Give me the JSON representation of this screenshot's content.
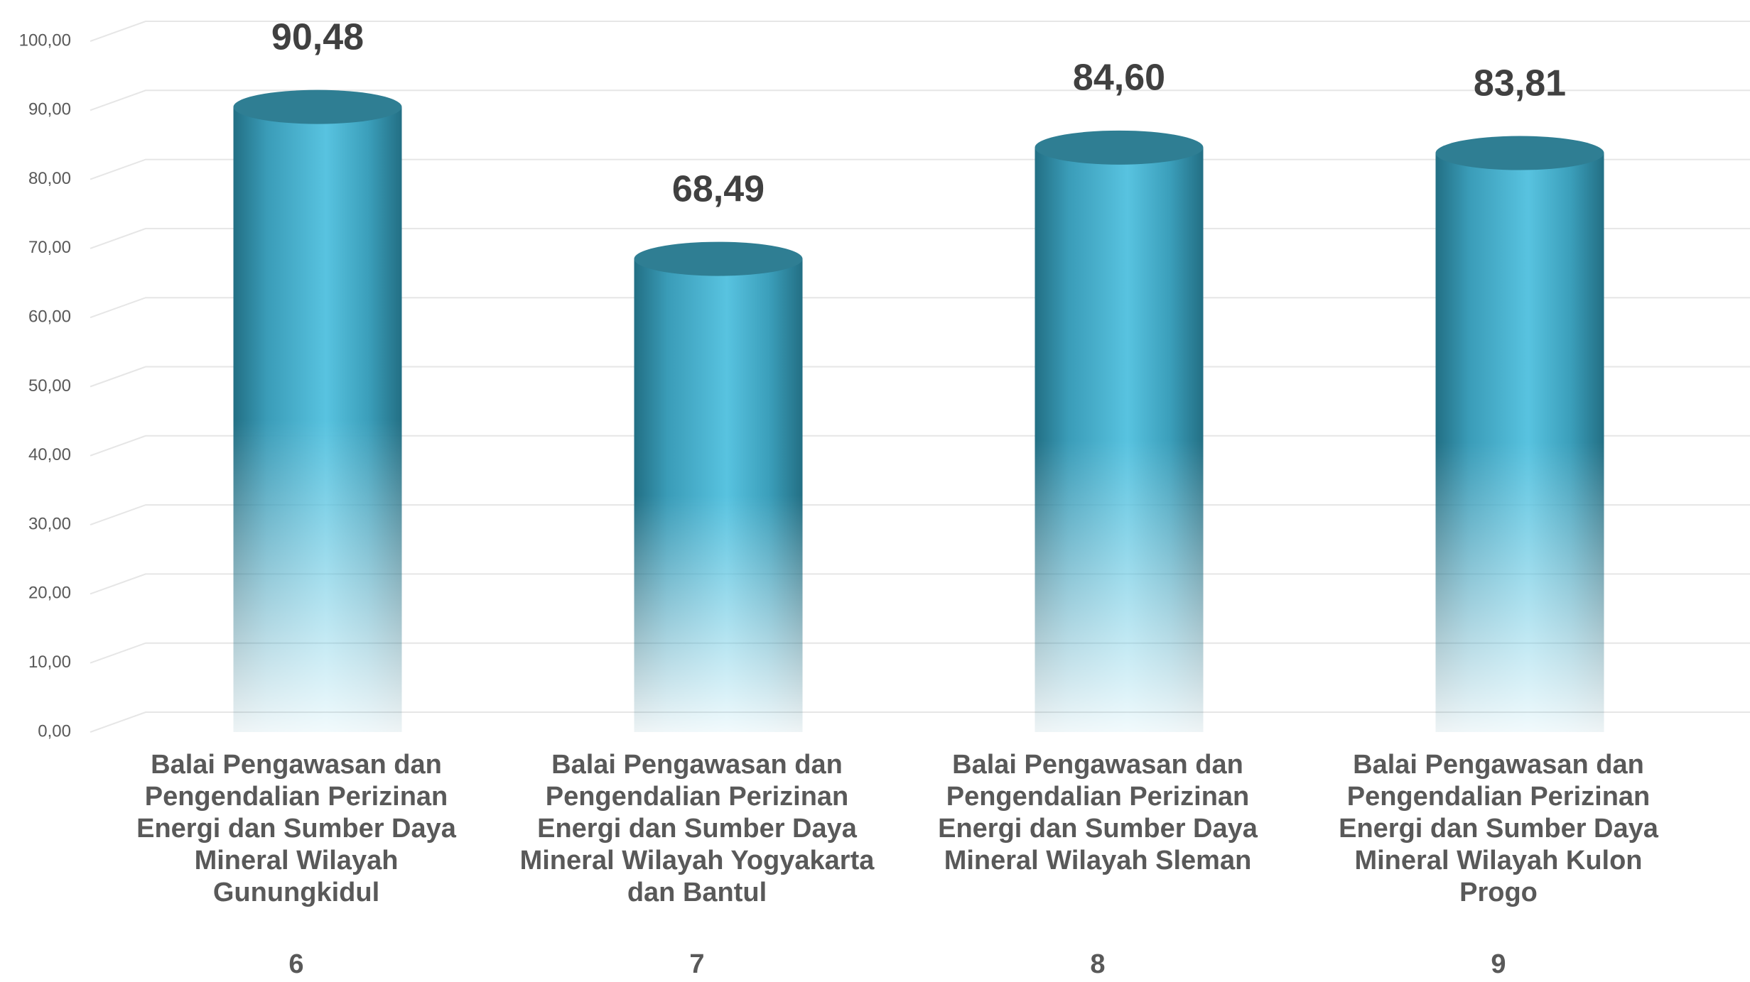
{
  "chart_data": {
    "type": "bar",
    "categories": [
      "Balai Pengawasan dan Pengendalian Perizinan Energi dan Sumber Daya Mineral Wilayah Gunungkidul",
      "Balai Pengawasan dan Pengendalian Perizinan Energi dan Sumber Daya Mineral Wilayah Yogyakarta dan Bantul",
      "Balai Pengawasan dan Pengendalian Perizinan Energi dan Sumber Daya Mineral Wilayah Sleman",
      "Balai Pengawasan dan Pengendalian Perizinan Energi dan Sumber Daya Mineral Wilayah Kulon Progo"
    ],
    "category_numbers": [
      "6",
      "7",
      "8",
      "9"
    ],
    "values": [
      90.48,
      68.49,
      84.6,
      83.81
    ],
    "value_labels": [
      "90,48",
      "68,49",
      "84,60",
      "83,81"
    ],
    "color": "#4db8d6",
    "ylim": [
      0,
      100
    ],
    "yticks": [
      {
        "value": 0,
        "label": "0,00"
      },
      {
        "value": 10,
        "label": "10,00"
      },
      {
        "value": 20,
        "label": "20,00"
      },
      {
        "value": 30,
        "label": "30,00"
      },
      {
        "value": 40,
        "label": "40,00"
      },
      {
        "value": 50,
        "label": "50,00"
      },
      {
        "value": 60,
        "label": "60,00"
      },
      {
        "value": 70,
        "label": "70,00"
      },
      {
        "value": 80,
        "label": "80,00"
      },
      {
        "value": 90,
        "label": "90,00"
      },
      {
        "value": 100,
        "label": "100,00"
      }
    ],
    "grid": true
  }
}
